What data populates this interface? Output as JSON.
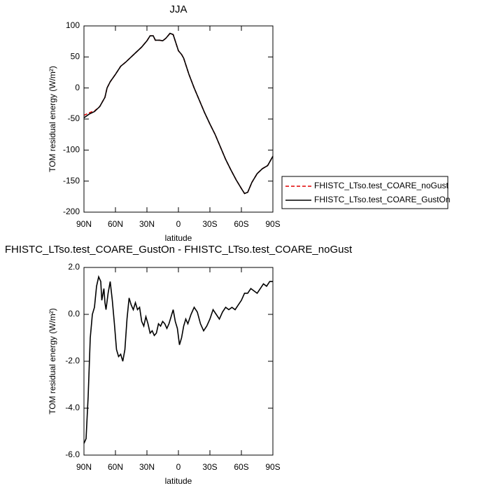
{
  "chart_data": [
    {
      "type": "line",
      "title": "JJA",
      "xlabel": "latitude",
      "ylabel": "TOM residual energy (W/m²)",
      "x": [
        90,
        85,
        80,
        75,
        70,
        68,
        65,
        60,
        55,
        50,
        45,
        40,
        35,
        30,
        27,
        24,
        22,
        18,
        15,
        12,
        8,
        5,
        0,
        -3,
        -5,
        -10,
        -15,
        -20,
        -25,
        -30,
        -35,
        -40,
        -45,
        -50,
        -55,
        -60,
        -63,
        -66,
        -70,
        -75,
        -80,
        -85,
        -90
      ],
      "series": [
        {
          "name": "FHISTC_LTso.test_COARE_noGust",
          "color": "#e00000",
          "line_style": "dashed",
          "values": [
            -44,
            -40,
            -37,
            -30,
            -15,
            0,
            10,
            22,
            35,
            42,
            50,
            58,
            66,
            76,
            84,
            84,
            77,
            77,
            76,
            80,
            88,
            86,
            60,
            54,
            48,
            22,
            0,
            -20,
            -40,
            -58,
            -75,
            -95,
            -115,
            -132,
            -148,
            -162,
            -170,
            -168,
            -152,
            -138,
            -130,
            -125,
            -110
          ]
        },
        {
          "name": "FHISTC_LTso.test_COARE_GustOn",
          "color": "#000000",
          "line_style": "solid",
          "values": [
            -48,
            -42,
            -38,
            -30,
            -15,
            0,
            10,
            22,
            35,
            42,
            50,
            58,
            66,
            76,
            84,
            84,
            77,
            77,
            76,
            80,
            88,
            86,
            60,
            54,
            48,
            22,
            0,
            -20,
            -40,
            -58,
            -75,
            -95,
            -115,
            -132,
            -148,
            -162,
            -170,
            -168,
            -152,
            -138,
            -130,
            -125,
            -110
          ]
        }
      ],
      "xlim": [
        90,
        -90
      ],
      "xticks": [
        {
          "value": 90,
          "label": "90N"
        },
        {
          "value": 60,
          "label": "60N"
        },
        {
          "value": 30,
          "label": "30N"
        },
        {
          "value": 0,
          "label": "0"
        },
        {
          "value": -30,
          "label": "30S"
        },
        {
          "value": -60,
          "label": "60S"
        },
        {
          "value": -90,
          "label": "90S"
        }
      ],
      "ylim": [
        -200,
        100
      ],
      "yticks": [
        100,
        50,
        0,
        -50,
        -100,
        -150,
        -200
      ],
      "legend": "right"
    },
    {
      "type": "line",
      "title": "FHISTC_LTso.test_COARE_GustOn - FHISTC_LTso.test_COARE_noGust",
      "xlabel": "latitude",
      "ylabel": "TOM residual energy (W/m²)",
      "x": [
        90,
        88,
        86,
        84,
        82,
        80,
        78,
        76,
        74,
        73,
        71,
        70,
        69,
        67,
        65,
        63,
        61,
        59,
        57,
        55,
        53,
        51,
        49,
        47,
        45,
        43,
        41,
        39,
        37,
        35,
        33,
        31,
        29,
        27,
        25,
        23,
        21,
        19,
        17,
        15,
        13,
        11,
        9,
        7,
        5,
        3,
        1,
        -1,
        -3,
        -5,
        -7,
        -9,
        -12,
        -15,
        -18,
        -21,
        -24,
        -27,
        -30,
        -33,
        -36,
        -39,
        -42,
        -45,
        -48,
        -51,
        -54,
        -57,
        -60,
        -63,
        -66,
        -69,
        -72,
        -75,
        -78,
        -81,
        -84,
        -87,
        -90
      ],
      "values": [
        -5.5,
        -5.3,
        -3.5,
        -1.0,
        0.0,
        0.3,
        1.2,
        1.6,
        1.4,
        0.6,
        1.1,
        0.5,
        0.2,
        0.9,
        1.4,
        0.6,
        -0.4,
        -1.5,
        -1.8,
        -1.7,
        -2.0,
        -1.5,
        -0.2,
        0.7,
        0.4,
        0.2,
        0.5,
        0.2,
        0.3,
        -0.3,
        -0.5,
        -0.1,
        -0.4,
        -0.8,
        -0.7,
        -0.9,
        -0.8,
        -0.4,
        -0.5,
        -0.3,
        -0.4,
        -0.6,
        -0.4,
        -0.1,
        0.2,
        -0.3,
        -0.6,
        -1.3,
        -1.0,
        -0.5,
        -0.2,
        -0.4,
        0.0,
        0.3,
        0.1,
        -0.4,
        -0.7,
        -0.5,
        -0.2,
        0.2,
        0.0,
        -0.2,
        0.1,
        0.3,
        0.2,
        0.3,
        0.2,
        0.4,
        0.6,
        0.9,
        0.9,
        1.1,
        1.0,
        0.9,
        1.1,
        1.3,
        1.2,
        1.4,
        1.4
      ],
      "color": "#000000",
      "xlim": [
        90,
        -90
      ],
      "xticks": [
        {
          "value": 90,
          "label": "90N"
        },
        {
          "value": 60,
          "label": "60N"
        },
        {
          "value": 30,
          "label": "30N"
        },
        {
          "value": 0,
          "label": "0"
        },
        {
          "value": -30,
          "label": "30S"
        },
        {
          "value": -60,
          "label": "60S"
        },
        {
          "value": -90,
          "label": "90S"
        }
      ],
      "ylim": [
        -6,
        2
      ],
      "yticks": [
        {
          "value": 2,
          "label": "2.0"
        },
        {
          "value": 0,
          "label": "0.0"
        },
        {
          "value": -2,
          "label": "-2.0"
        },
        {
          "value": -4,
          "label": "-4.0"
        },
        {
          "value": -6,
          "label": "-6.0"
        }
      ]
    }
  ]
}
